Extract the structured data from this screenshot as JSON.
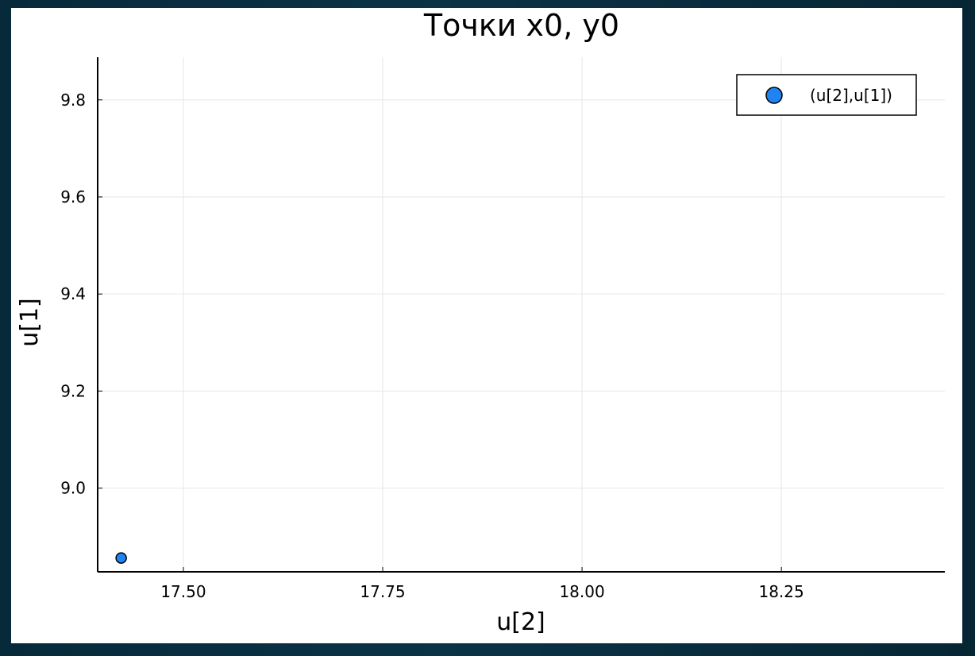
{
  "chart_data": {
    "type": "scatter",
    "title": "Точки x0, y0",
    "xlabel": "u[2]",
    "ylabel": "u[1]",
    "xlim": [
      17.3925,
      18.455
    ],
    "ylim": [
      8.8275,
      9.888
    ],
    "xticks": [
      17.5,
      17.75,
      18.0,
      18.25
    ],
    "xtick_labels": [
      "17.50",
      "17.75",
      "18.00",
      "18.25"
    ],
    "yticks": [
      9.0,
      9.2,
      9.4,
      9.6,
      9.8
    ],
    "ytick_labels": [
      "9.0",
      "9.2",
      "9.4",
      "9.6",
      "9.8"
    ],
    "grid": true,
    "legend_position": "top-right",
    "series": [
      {
        "name": "(u[2],u[1])",
        "color": "#1f83f2",
        "points": [
          {
            "x": 17.422,
            "y": 8.856
          }
        ]
      }
    ]
  }
}
